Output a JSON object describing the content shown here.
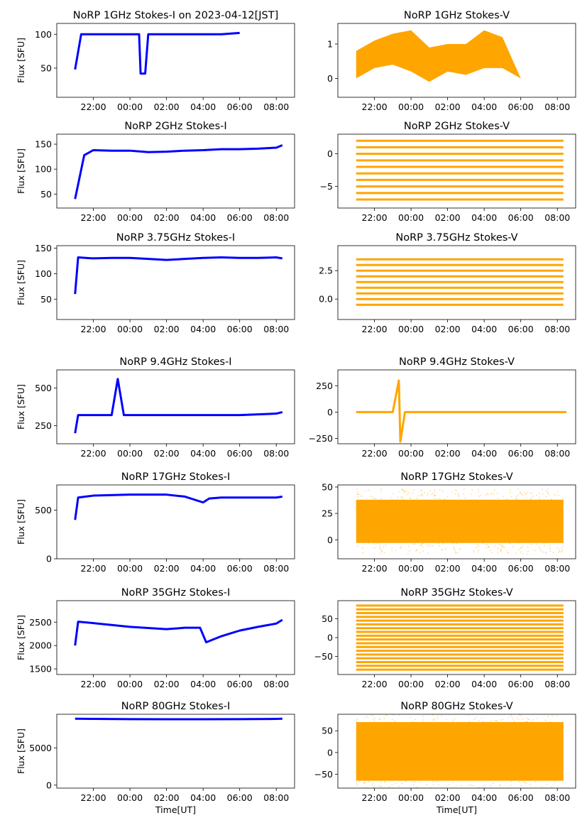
{
  "figure": {
    "xlabel": "Time[UT]",
    "xticks": [
      "22:00",
      "00:00",
      "02:00",
      "04:00",
      "06:00",
      "08:00"
    ],
    "colors": {
      "stokes_i": "#0000ff",
      "stokes_v": "#ffa500"
    }
  },
  "chart_data": [
    {
      "type": "scatter",
      "title": "NoRP 1GHz Stokes-I on 2023-04-12[JST]",
      "ylabel": "Flux [SFU]",
      "ylim": [
        7,
        116
      ],
      "yticks": [
        50,
        100
      ],
      "color": "#0000ff",
      "series": [
        {
          "x": [
            "21:00",
            "21:20",
            "21:40",
            "22:00",
            "23:00",
            "00:00",
            "00:30",
            "00:35",
            "00:50",
            "01:00",
            "02:00",
            "03:00",
            "04:00",
            "05:00",
            "06:00"
          ],
          "y": [
            48,
            100,
            100,
            100,
            100,
            100,
            100,
            42,
            42,
            100,
            100,
            100,
            100,
            100,
            102
          ]
        }
      ]
    },
    {
      "type": "scatter",
      "title": "NoRP 1GHz Stokes-V",
      "ylabel": "",
      "ylim": [
        -0.55,
        1.6
      ],
      "yticks": [
        0,
        1
      ],
      "color": "#ffa500",
      "series": [
        {
          "x": [
            "21:00",
            "22:00",
            "23:00",
            "00:00",
            "01:00",
            "02:00",
            "03:00",
            "04:00",
            "05:00",
            "06:00",
            "07:00",
            "08:30"
          ],
          "y_low": [
            0,
            0.3,
            0.4,
            0.2,
            -0.1,
            0.2,
            0.1,
            0.3,
            0.3,
            0,
            0,
            0
          ],
          "y_high": [
            0.8,
            1.1,
            1.3,
            1.4,
            0.9,
            1.0,
            1.0,
            1.4,
            1.2,
            0,
            0,
            0
          ]
        }
      ]
    },
    {
      "type": "scatter",
      "title": "NoRP 2GHz Stokes-I",
      "ylabel": "Flux [SFU]",
      "ylim": [
        22,
        170
      ],
      "yticks": [
        50,
        100,
        150
      ],
      "color": "#0000ff",
      "series": [
        {
          "x": [
            "21:00",
            "21:30",
            "22:00",
            "23:00",
            "00:00",
            "01:00",
            "02:00",
            "03:00",
            "04:00",
            "05:00",
            "06:00",
            "07:00",
            "08:00",
            "08:20"
          ],
          "y": [
            40,
            128,
            138,
            137,
            137,
            134,
            135,
            137,
            138,
            140,
            140,
            141,
            143,
            148
          ]
        }
      ]
    },
    {
      "type": "scatter",
      "title": "NoRP 2GHz Stokes-V",
      "ylabel": "",
      "ylim": [
        -8.3,
        3
      ],
      "yticks": [
        -5,
        0
      ],
      "color": "#ffa500",
      "series": [
        {
          "x_range": [
            "21:00",
            "08:20"
          ],
          "levels": [
            2,
            1,
            0,
            -1,
            -2,
            -3,
            -4,
            -5,
            -6,
            -7
          ]
        }
      ]
    },
    {
      "type": "scatter",
      "title": "NoRP 3.75GHz Stokes-I",
      "ylabel": "Flux [SFU]",
      "ylim": [
        10,
        155
      ],
      "yticks": [
        50,
        100,
        150
      ],
      "color": "#0000ff",
      "series": [
        {
          "x": [
            "21:00",
            "21:10",
            "22:00",
            "23:00",
            "00:00",
            "01:00",
            "02:00",
            "03:00",
            "04:00",
            "05:00",
            "06:00",
            "07:00",
            "08:00",
            "08:20"
          ],
          "y": [
            60,
            132,
            130,
            131,
            131,
            129,
            127,
            129,
            131,
            132,
            131,
            131,
            132,
            130
          ]
        }
      ]
    },
    {
      "type": "scatter",
      "title": "NoRP 3.75GHz Stokes-V",
      "ylabel": "",
      "ylim": [
        -1.8,
        4.7
      ],
      "yticks": [
        0.0,
        2.5
      ],
      "color": "#ffa500",
      "series": [
        {
          "x_range": [
            "21:00",
            "08:20"
          ],
          "levels": [
            -0.5,
            0,
            0.5,
            1,
            1.5,
            2,
            2.5,
            3,
            3.5
          ]
        }
      ]
    },
    {
      "type": "scatter",
      "title": "NoRP 9.4GHz Stokes-I",
      "ylabel": "Flux [SFU]",
      "ylim": [
        130,
        620
      ],
      "yticks": [
        250,
        500
      ],
      "color": "#0000ff",
      "series": [
        {
          "x": [
            "21:00",
            "21:10",
            "22:00",
            "23:00",
            "23:20",
            "23:40",
            "00:00",
            "02:00",
            "04:00",
            "06:00",
            "08:00",
            "08:20"
          ],
          "y": [
            200,
            320,
            320,
            320,
            560,
            320,
            320,
            320,
            320,
            320,
            330,
            340
          ]
        }
      ]
    },
    {
      "type": "scatter",
      "title": "NoRP 9.4GHz Stokes-V",
      "ylabel": "",
      "ylim": [
        -300,
        400
      ],
      "yticks": [
        -250,
        0,
        250
      ],
      "color": "#ffa500",
      "series": [
        {
          "x": [
            "21:00",
            "22:00",
            "23:00",
            "23:20",
            "23:25",
            "23:40",
            "00:00",
            "02:00",
            "04:00",
            "06:00",
            "07:00",
            "08:30"
          ],
          "y": [
            0,
            0,
            0,
            300,
            -280,
            0,
            0,
            0,
            0,
            0,
            0,
            0
          ]
        }
      ]
    },
    {
      "type": "scatter",
      "title": "NoRP 17GHz Stokes-I",
      "ylabel": "Flux [SFU]",
      "ylim": [
        0,
        760
      ],
      "yticks": [
        0,
        500
      ],
      "color": "#0000ff",
      "series": [
        {
          "x": [
            "21:00",
            "21:10",
            "22:00",
            "00:00",
            "02:00",
            "03:00",
            "04:00",
            "04:20",
            "05:00",
            "06:00",
            "08:00",
            "08:20"
          ],
          "y": [
            400,
            630,
            650,
            660,
            660,
            640,
            580,
            620,
            630,
            630,
            630,
            640
          ]
        }
      ]
    },
    {
      "type": "scatter",
      "title": "NoRP 17GHz Stokes-V",
      "ylabel": "",
      "ylim": [
        -18,
        52
      ],
      "yticks": [
        0,
        25,
        50
      ],
      "color": "#ffa500",
      "series": [
        {
          "x_range": [
            "21:00",
            "08:20"
          ],
          "y_range": [
            -3,
            38
          ]
        }
      ]
    },
    {
      "type": "scatter",
      "title": "NoRP 35GHz Stokes-I",
      "ylabel": "Flux [SFU]",
      "ylim": [
        1380,
        2960
      ],
      "yticks": [
        1500,
        2000,
        2500
      ],
      "color": "#0000ff",
      "series": [
        {
          "x": [
            "21:00",
            "21:10",
            "22:00",
            "00:00",
            "02:00",
            "03:00",
            "03:50",
            "04:10",
            "05:00",
            "06:00",
            "07:00",
            "08:00",
            "08:20"
          ],
          "y": [
            2000,
            2510,
            2480,
            2400,
            2350,
            2380,
            2380,
            2070,
            2200,
            2320,
            2400,
            2470,
            2550
          ]
        }
      ]
    },
    {
      "type": "scatter",
      "title": "NoRP 35GHz Stokes-V",
      "ylabel": "",
      "ylim": [
        -98,
        98
      ],
      "yticks": [
        -50,
        0,
        50
      ],
      "color": "#ffa500",
      "series": [
        {
          "x_range": [
            "21:00",
            "08:20"
          ],
          "levels": [
            -85,
            -75,
            -65,
            -55,
            -45,
            -35,
            -25,
            -15,
            -5,
            5,
            15,
            25,
            35,
            45,
            55,
            65,
            75,
            85
          ]
        }
      ]
    },
    {
      "type": "scatter",
      "title": "NoRP 80GHz Stokes-I",
      "ylabel": "Flux [SFU]",
      "ylim": [
        -400,
        9500
      ],
      "yticks": [
        0,
        5000
      ],
      "color": "#0000ff",
      "series": [
        {
          "x": [
            "21:00",
            "22:00",
            "00:00",
            "02:00",
            "04:00",
            "06:00",
            "08:00",
            "08:20"
          ],
          "y": [
            8900,
            8880,
            8850,
            8830,
            8830,
            8840,
            8880,
            8900
          ]
        }
      ]
    },
    {
      "type": "scatter",
      "title": "NoRP 80GHz Stokes-V",
      "ylabel": "",
      "ylim": [
        -82,
        88
      ],
      "yticks": [
        -50,
        0,
        50
      ],
      "color": "#ffa500",
      "series": [
        {
          "x_range": [
            "21:00",
            "08:20"
          ],
          "y_range": [
            -65,
            70
          ]
        }
      ]
    }
  ]
}
